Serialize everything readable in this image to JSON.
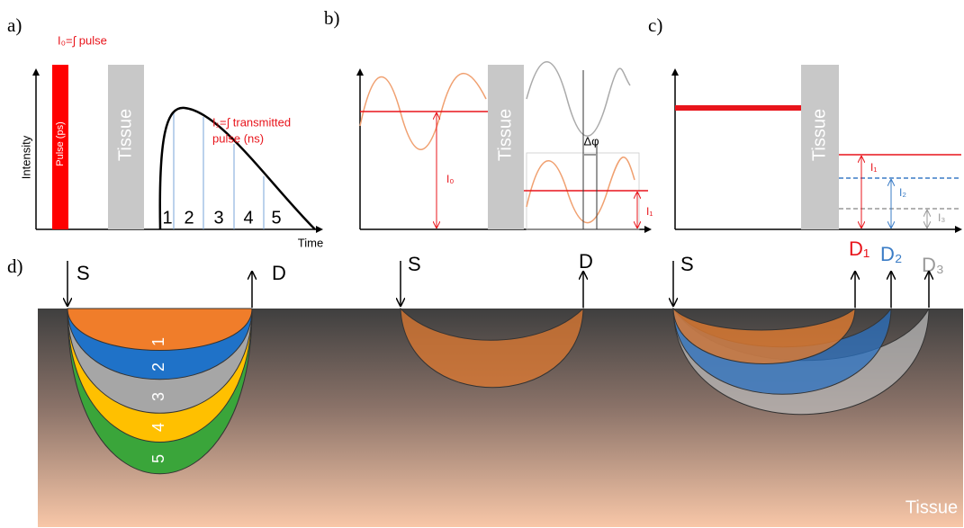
{
  "panel_labels": [
    "a)",
    "b)",
    "c)",
    "d)"
  ],
  "panel_a": {
    "pulse_integral": "I₀=∫ pulse",
    "pulse_label": "Pulse (ps)",
    "tissue": "Tissue",
    "y_axis": "Intensity",
    "x_axis": "Time",
    "transmitted": [
      "I₁=∫ transmitted",
      "pulse (ns)"
    ],
    "gates": [
      "1",
      "2",
      "3",
      "4",
      "5"
    ]
  },
  "panel_b": {
    "tissue": "Tissue",
    "i0": "I₀",
    "i1": "I₁",
    "phase": "Δφ"
  },
  "panel_c": {
    "tissue": "Tissue",
    "i1": "I₁",
    "i2": "I₂",
    "i3": "I₃",
    "d1": "D₁",
    "d2": "D₂",
    "d3": "D₃"
  },
  "panel_d": {
    "source_1": "S",
    "detector_1": "D",
    "bananas": [
      "1",
      "2",
      "3",
      "4",
      "5"
    ],
    "source_2": "S",
    "detector_2": "D",
    "source_3": "S",
    "tissue": "Tissue"
  }
}
